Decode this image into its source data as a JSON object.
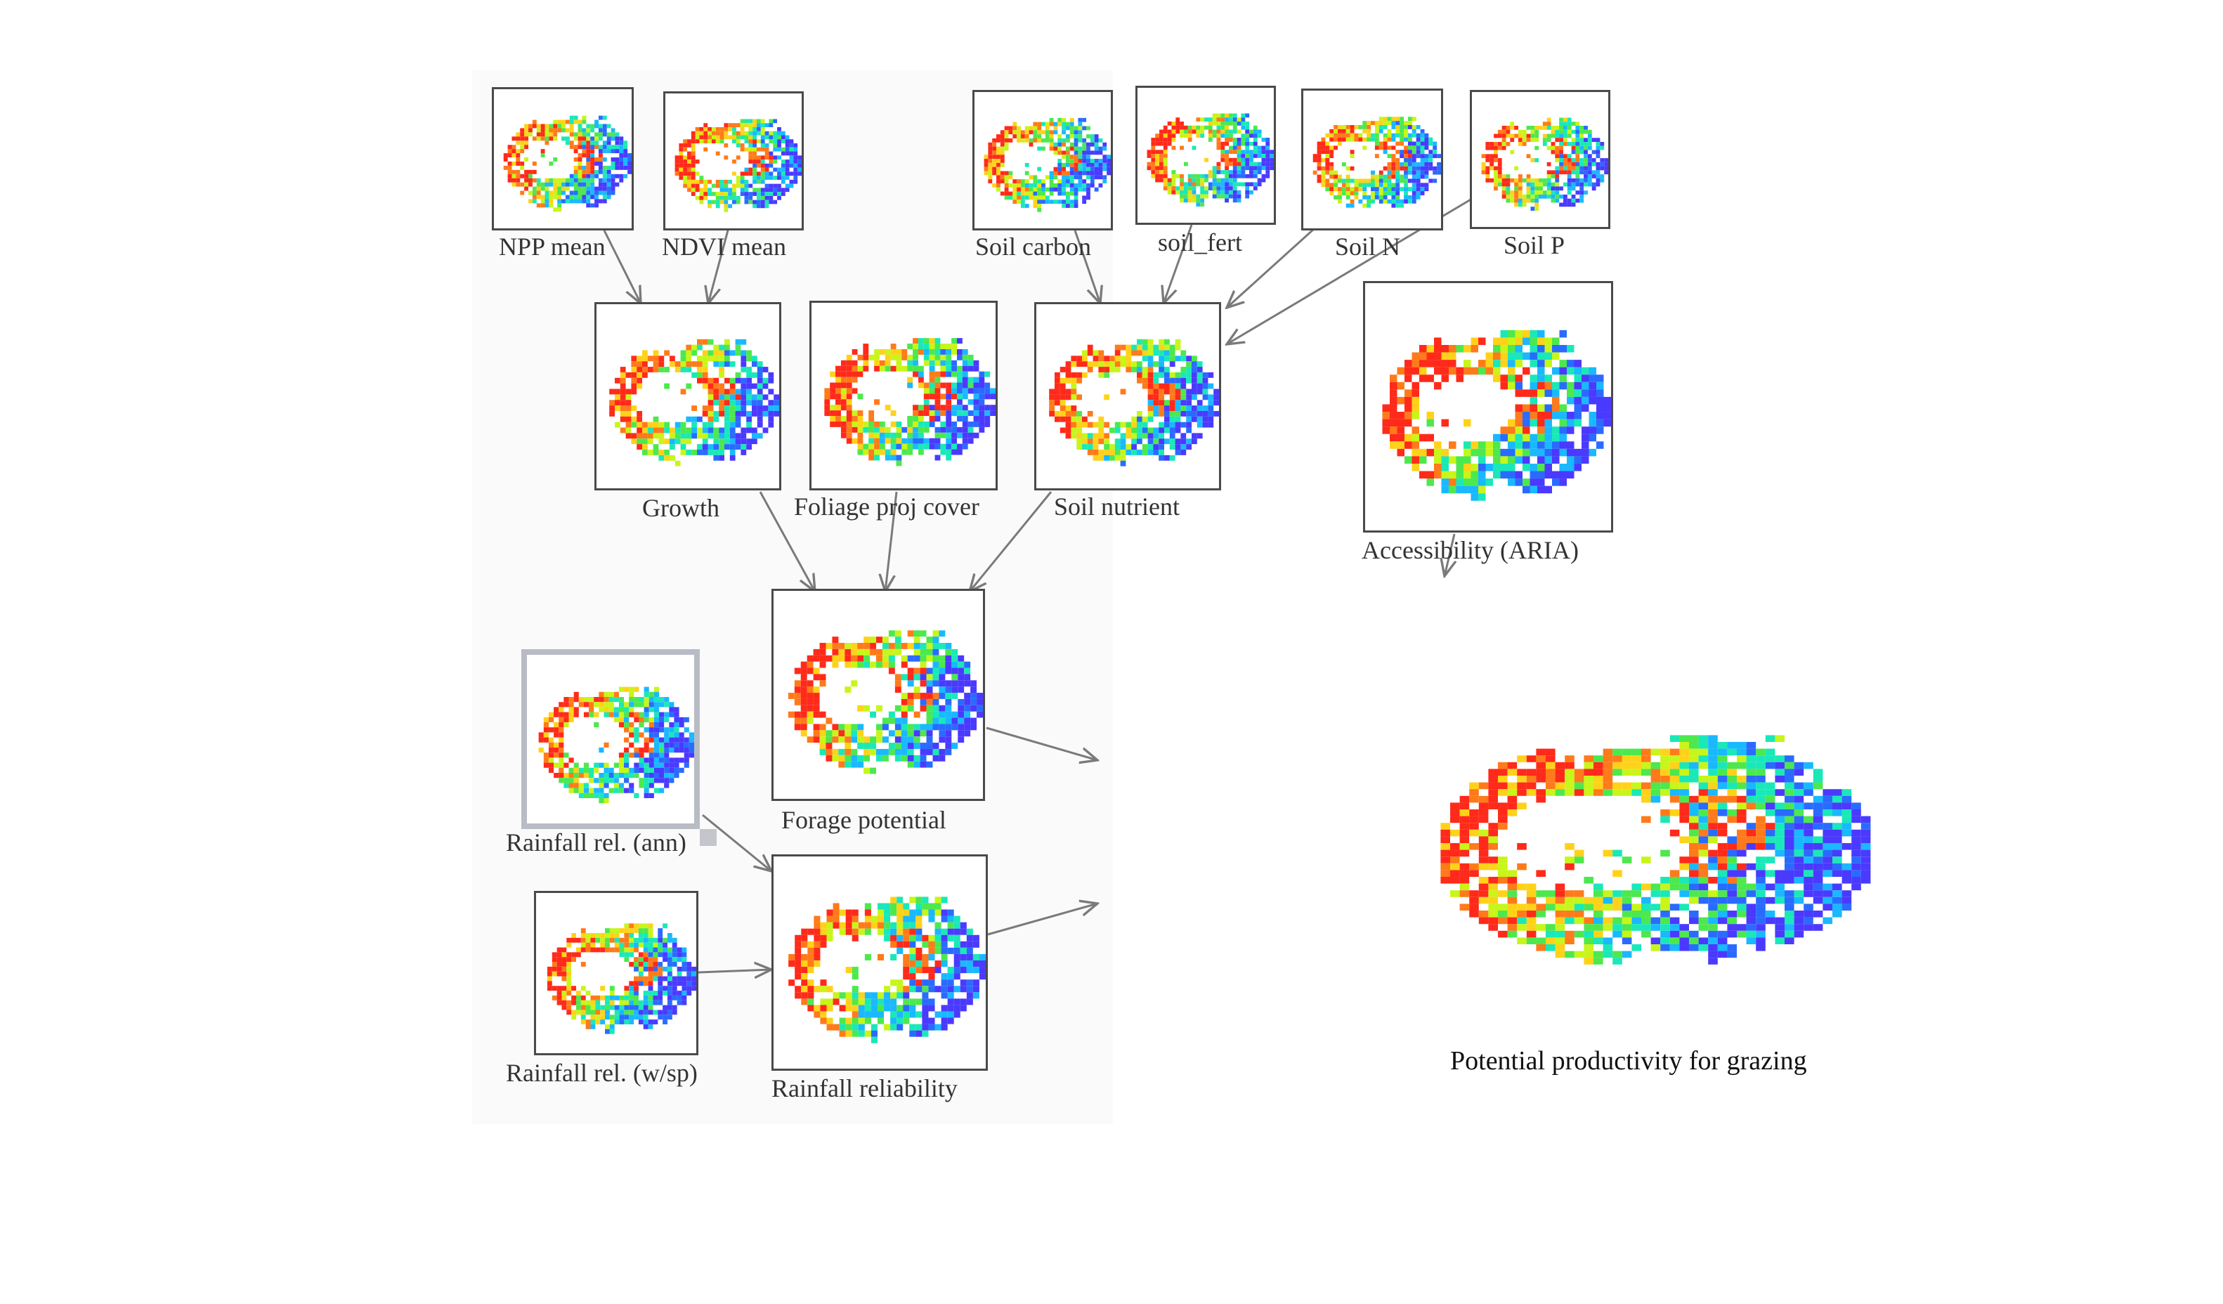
{
  "nodes": [
    {
      "id": "npp",
      "label": "NPP mean"
    },
    {
      "id": "ndvi",
      "label": "NDVI mean"
    },
    {
      "id": "soilc",
      "label": "Soil carbon"
    },
    {
      "id": "soilf",
      "label": "soil_fert"
    },
    {
      "id": "soiln",
      "label": "Soil N"
    },
    {
      "id": "soilp",
      "label": "Soil P"
    },
    {
      "id": "growth",
      "label": "Growth"
    },
    {
      "id": "foliage",
      "label": "Foliage proj cover"
    },
    {
      "id": "nutrient",
      "label": "Soil nutrient"
    },
    {
      "id": "aria",
      "label": "Accessibility (ARIA)"
    },
    {
      "id": "forage",
      "label": "Forage potential"
    },
    {
      "id": "rainann",
      "label": "Rainfall rel. (ann)"
    },
    {
      "id": "rainwsp",
      "label": "Rainfall rel. (w/sp)"
    },
    {
      "id": "rainrel",
      "label": "Rainfall  reliability"
    }
  ],
  "edges": [
    [
      "npp",
      "growth"
    ],
    [
      "ndvi",
      "growth"
    ],
    [
      "soilc",
      "nutrient"
    ],
    [
      "soilf",
      "nutrient"
    ],
    [
      "soiln",
      "nutrient"
    ],
    [
      "soilp",
      "nutrient"
    ],
    [
      "growth",
      "forage"
    ],
    [
      "foliage",
      "forage"
    ],
    [
      "nutrient",
      "forage"
    ],
    [
      "rainann",
      "rainrel"
    ],
    [
      "rainwsp",
      "rainrel"
    ]
  ],
  "output": {
    "label": "Potential productivity for grazing"
  },
  "colors": {
    "border": "#4a4a4a",
    "arrow": "#7a7a7a",
    "selection": "#b8bcc4"
  }
}
